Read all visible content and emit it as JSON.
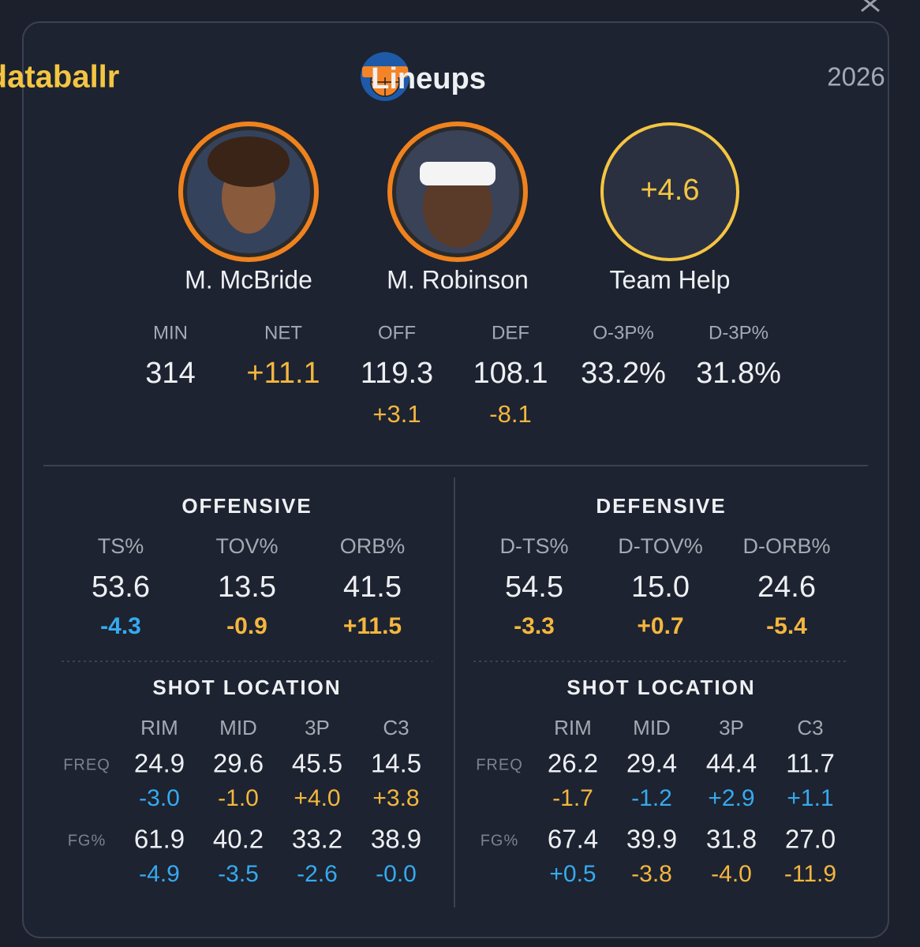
{
  "header": {
    "brand": "databallr",
    "title": "Lineups",
    "season": "2026"
  },
  "players": [
    {
      "name": "M. McBride"
    },
    {
      "name": "M. Robinson"
    }
  ],
  "team_help": {
    "value": "+4.6",
    "label": "Team Help"
  },
  "summary": [
    {
      "label": "MIN",
      "value": "314"
    },
    {
      "label": "NET",
      "value": "+11.1",
      "value_color": "#f4b63f"
    },
    {
      "label": "OFF",
      "value": "119.3",
      "delta": {
        "text": "+3.1",
        "color": "#f4b63f"
      }
    },
    {
      "label": "DEF",
      "value": "108.1",
      "delta": {
        "text": "-8.1",
        "color": "#f4b63f"
      }
    },
    {
      "label": "O-3P%",
      "value": "33.2%"
    },
    {
      "label": "D-3P%",
      "value": "31.8%"
    }
  ],
  "panels": [
    {
      "title": "OFFENSIVE",
      "stats": [
        {
          "label": "TS%",
          "value": "53.6",
          "delta": {
            "text": "-4.3",
            "color": "#35aaf0"
          }
        },
        {
          "label": "TOV%",
          "value": "13.5",
          "delta": {
            "text": "-0.9",
            "color": "#f4b63f"
          }
        },
        {
          "label": "ORB%",
          "value": "41.5",
          "delta": {
            "text": "+11.5",
            "color": "#f4b63f"
          }
        }
      ],
      "shot_location": {
        "title": "SHOT LOCATION",
        "columns": [
          "RIM",
          "MID",
          "3P",
          "C3"
        ],
        "rows": [
          {
            "label": "FREQ",
            "cells": [
              {
                "value": "24.9",
                "delta": {
                  "text": "-3.0",
                  "color": "#35aaf0"
                }
              },
              {
                "value": "29.6",
                "delta": {
                  "text": "-1.0",
                  "color": "#f4b63f"
                }
              },
              {
                "value": "45.5",
                "delta": {
                  "text": "+4.0",
                  "color": "#f4b63f"
                }
              },
              {
                "value": "14.5",
                "delta": {
                  "text": "+3.8",
                  "color": "#f4b63f"
                }
              }
            ]
          },
          {
            "label": "FG%",
            "cells": [
              {
                "value": "61.9",
                "delta": {
                  "text": "-4.9",
                  "color": "#35aaf0"
                }
              },
              {
                "value": "40.2",
                "delta": {
                  "text": "-3.5",
                  "color": "#35aaf0"
                }
              },
              {
                "value": "33.2",
                "delta": {
                  "text": "-2.6",
                  "color": "#35aaf0"
                }
              },
              {
                "value": "38.9",
                "delta": {
                  "text": "-0.0",
                  "color": "#35aaf0"
                }
              }
            ]
          }
        ]
      }
    },
    {
      "title": "DEFENSIVE",
      "stats": [
        {
          "label": "D-TS%",
          "value": "54.5",
          "delta": {
            "text": "-3.3",
            "color": "#f4b63f"
          }
        },
        {
          "label": "D-TOV%",
          "value": "15.0",
          "delta": {
            "text": "+0.7",
            "color": "#f4b63f"
          }
        },
        {
          "label": "D-ORB%",
          "value": "24.6",
          "delta": {
            "text": "-5.4",
            "color": "#f4b63f"
          }
        }
      ],
      "shot_location": {
        "title": "SHOT LOCATION",
        "columns": [
          "RIM",
          "MID",
          "3P",
          "C3"
        ],
        "rows": [
          {
            "label": "FREQ",
            "cells": [
              {
                "value": "26.2",
                "delta": {
                  "text": "-1.7",
                  "color": "#f4b63f"
                }
              },
              {
                "value": "29.4",
                "delta": {
                  "text": "-1.2",
                  "color": "#35aaf0"
                }
              },
              {
                "value": "44.4",
                "delta": {
                  "text": "+2.9",
                  "color": "#35aaf0"
                }
              },
              {
                "value": "11.7",
                "delta": {
                  "text": "+1.1",
                  "color": "#35aaf0"
                }
              }
            ]
          },
          {
            "label": "FG%",
            "cells": [
              {
                "value": "67.4",
                "delta": {
                  "text": "+0.5",
                  "color": "#35aaf0"
                }
              },
              {
                "value": "39.9",
                "delta": {
                  "text": "-3.8",
                  "color": "#f4b63f"
                }
              },
              {
                "value": "31.8",
                "delta": {
                  "text": "-4.0",
                  "color": "#f4b63f"
                }
              },
              {
                "value": "27.0",
                "delta": {
                  "text": "-11.9",
                  "color": "#f4b63f"
                }
              }
            ]
          }
        ]
      }
    }
  ]
}
